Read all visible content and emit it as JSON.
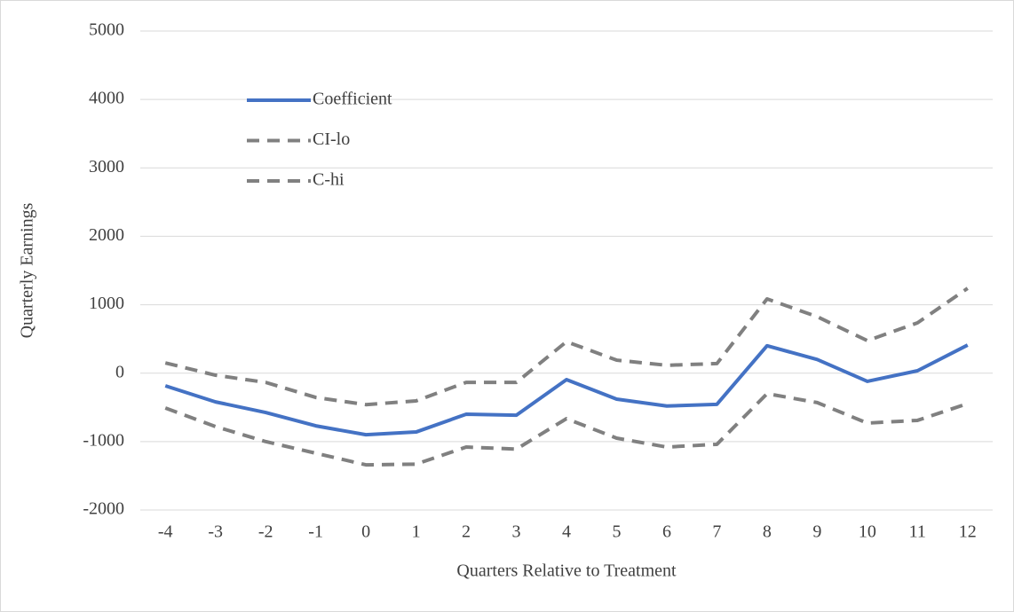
{
  "chart_data": {
    "type": "line",
    "x_label": "Quarters Relative to Treatment",
    "y_label": "Quarterly Earnings",
    "categories": [
      "-4",
      "-3",
      "-2",
      "-1",
      "0",
      "1",
      "2",
      "3",
      "4",
      "5",
      "6",
      "7",
      "8",
      "9",
      "10",
      "11",
      "12"
    ],
    "series": [
      {
        "name": "Coefficient",
        "color": "#4472c4",
        "dashed": false,
        "values": [
          -185,
          -420,
          -575,
          -770,
          -900,
          -860,
          -600,
          -615,
          -95,
          -380,
          -480,
          -455,
          400,
          200,
          -120,
          35,
          410
        ]
      },
      {
        "name": "CI-lo",
        "color": "#808080",
        "dashed": true,
        "values": [
          -510,
          -780,
          -1000,
          -1170,
          -1340,
          -1330,
          -1080,
          -1110,
          -665,
          -950,
          -1080,
          -1040,
          -300,
          -430,
          -730,
          -690,
          -445
        ]
      },
      {
        "name": "C-hi",
        "color": "#808080",
        "dashed": true,
        "values": [
          150,
          -30,
          -135,
          -355,
          -460,
          -405,
          -135,
          -135,
          460,
          190,
          115,
          140,
          1085,
          825,
          475,
          735,
          1240
        ]
      }
    ],
    "ylim": [
      -2000,
      5000
    ],
    "yticks": [
      -2000,
      -1000,
      0,
      1000,
      2000,
      3000,
      4000,
      5000
    ],
    "grid": true,
    "legend": "upper-left"
  }
}
